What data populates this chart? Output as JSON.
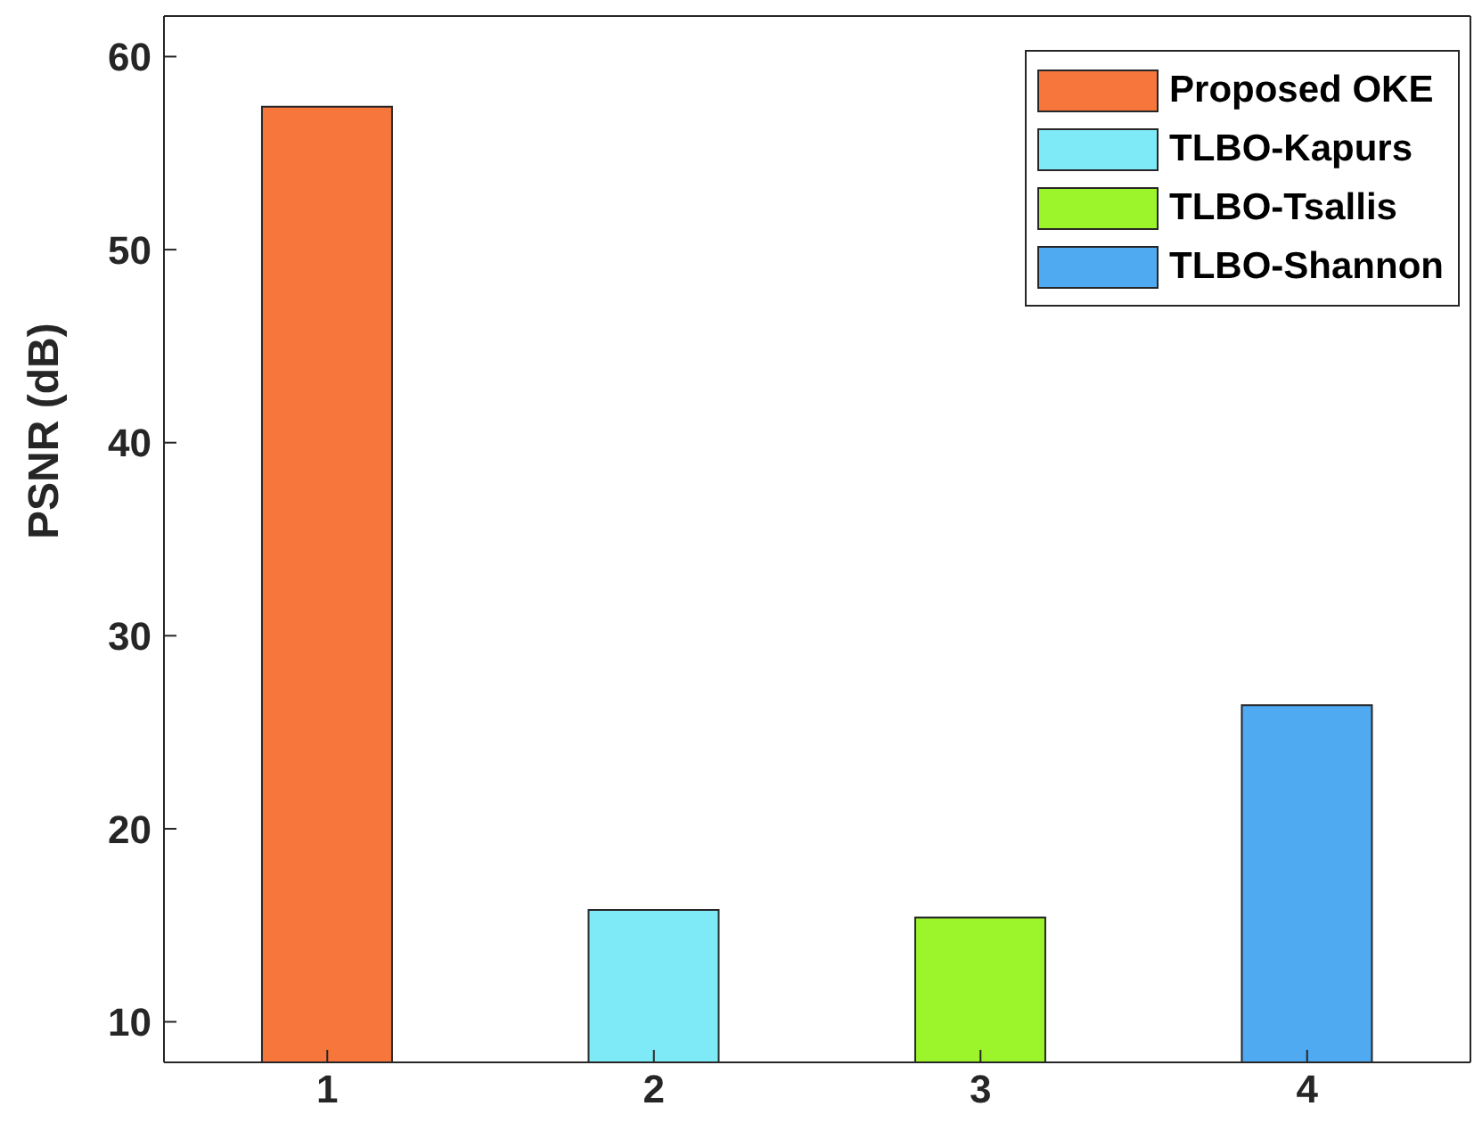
{
  "chart_data": {
    "type": "bar",
    "ylabel": "PSNR (dB)",
    "categories": [
      "1",
      "2",
      "3",
      "4"
    ],
    "series": [
      {
        "name": "Proposed OKE",
        "color": "#f7763b",
        "values": [
          57.4,
          null,
          null,
          null
        ]
      },
      {
        "name": "TLBO-Kapurs",
        "color": "#7feaf7",
        "values": [
          null,
          15.8,
          null,
          null
        ]
      },
      {
        "name": "TLBO-Tsallis",
        "color": "#9cf52a",
        "values": [
          null,
          null,
          15.4,
          null
        ]
      },
      {
        "name": "TLBO-Shannon",
        "color": "#50aaf2",
        "values": [
          null,
          null,
          null,
          26.4
        ]
      }
    ],
    "ylim": [
      7.9,
      62.1
    ],
    "yticks": [
      10,
      20,
      30,
      40,
      50,
      60
    ],
    "grid": false,
    "legend": "top right"
  }
}
